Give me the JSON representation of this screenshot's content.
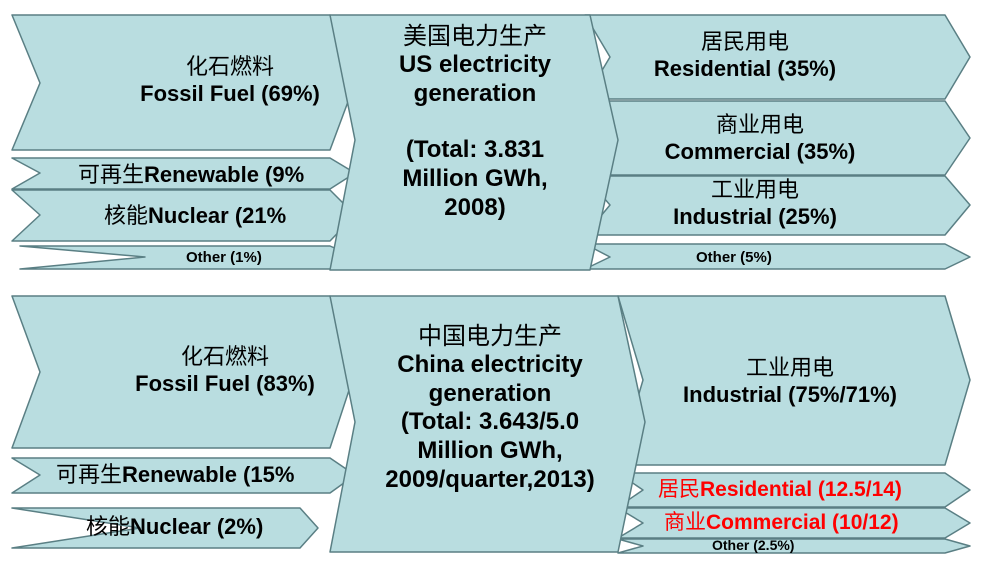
{
  "colors": {
    "flow_fill": "#b9dde0",
    "flow_stroke": "#5a7f84",
    "highlight_text": "#ff0000"
  },
  "us": {
    "center": {
      "zh": "美国电力生产",
      "en1": "US electricity",
      "en2": "generation",
      "total1": "(Total: 3.831",
      "total2": "Million GWh,",
      "total3": "2008)"
    },
    "inputs": {
      "fossil": {
        "zh": "化石燃料",
        "en": "Fossil Fuel (69%)"
      },
      "renewable": {
        "zh": "可再生",
        "en": "Renewable (9%"
      },
      "nuclear": {
        "zh": "核能",
        "en": "Nuclear (21%"
      },
      "other": {
        "en": "Other (1%)"
      }
    },
    "outputs": {
      "residential": {
        "zh": "居民用电",
        "en": "Residential (35%)"
      },
      "commercial": {
        "zh": "商业用电",
        "en": "Commercial (35%)"
      },
      "industrial": {
        "zh": "工业用电",
        "en": "Industrial (25%)"
      },
      "other": {
        "en": "Other (5%)"
      }
    }
  },
  "china": {
    "center": {
      "zh": "中国电力生产",
      "en1": "China electricity",
      "en2": "generation",
      "total1": "(Total: 3.643/5.0",
      "total2": "Million GWh,",
      "total3": "2009/quarter,2013)"
    },
    "inputs": {
      "fossil": {
        "zh": "化石燃料",
        "en": "Fossil Fuel (83%)"
      },
      "renewable": {
        "zh": "可再生",
        "en": "Renewable (15%"
      },
      "nuclear": {
        "zh": "核能",
        "en": "Nuclear (2%)"
      }
    },
    "outputs": {
      "industrial": {
        "zh": "工业用电",
        "en": "Industrial (75%/71%)"
      },
      "residential": {
        "zh": "居民",
        "en": "Residential (12.5/14)"
      },
      "commercial": {
        "zh": "商业",
        "en": "Commercial (10/12)"
      },
      "other": {
        "en": "Other (2.5%)"
      }
    }
  }
}
